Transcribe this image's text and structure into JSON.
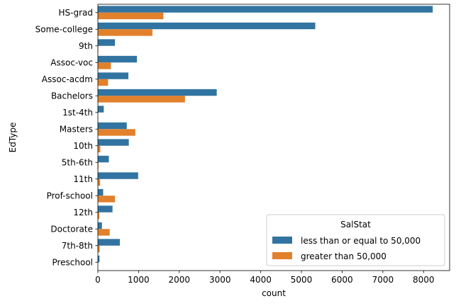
{
  "chart_data": {
    "type": "bar",
    "orientation": "horizontal",
    "categories": [
      "HS-grad",
      "Some-college",
      "9th",
      "Assoc-voc",
      "Assoc-acdm",
      "Bachelors",
      "1st-4th",
      "Masters",
      "10th",
      "5th-6th",
      "11th",
      "Prof-school",
      "12th",
      "Doctorate",
      "7th-8th",
      "Preschool"
    ],
    "series": [
      {
        "name": "less than or equal to 50,000",
        "color": "#3274a1",
        "values": [
          8225,
          5340,
          420,
          960,
          750,
          2920,
          145,
          710,
          760,
          270,
          990,
          130,
          360,
          100,
          540,
          40
        ]
      },
      {
        "name": "greater than 50,000",
        "color": "#e1812c",
        "values": [
          1610,
          1340,
          10,
          320,
          250,
          2140,
          5,
          920,
          60,
          15,
          55,
          420,
          35,
          290,
          45,
          0
        ]
      }
    ],
    "title": "",
    "xlabel": "count",
    "ylabel": "EdType",
    "xlim": [
      0,
      8640
    ],
    "xticks": [
      0,
      1000,
      2000,
      3000,
      4000,
      5000,
      6000,
      7000,
      8000
    ],
    "grid": false,
    "legend": {
      "title": "SalStat",
      "placement": "lower-right"
    }
  }
}
